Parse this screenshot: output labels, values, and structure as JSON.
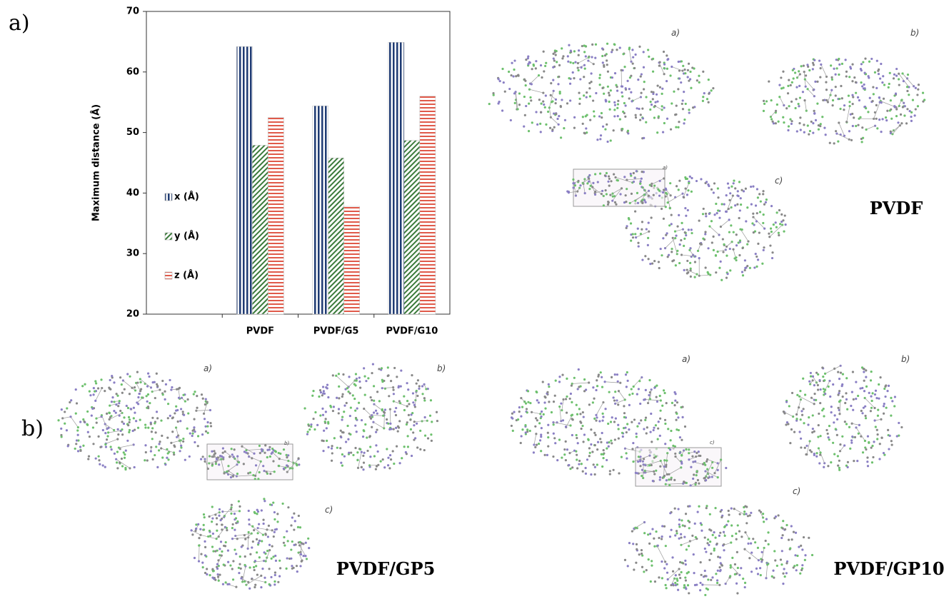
{
  "chart_data": {
    "type": "bar",
    "y_label": "Maximum distance (Å)",
    "categories": [
      null,
      "PVDF",
      "PVDF/G5",
      "PVDF/G10"
    ],
    "series": [
      {
        "name": "x (Å)",
        "color": "#1f3b73",
        "values": [
          null,
          64.2,
          54.4,
          64.9
        ]
      },
      {
        "name": "y (Å)",
        "color": "#3a7a3a",
        "values": [
          null,
          47.9,
          45.8,
          48.7
        ]
      },
      {
        "name": "z (Å)",
        "color": "#e05a4a",
        "values": [
          null,
          52.5,
          37.8,
          56.0
        ]
      }
    ],
    "ylim": [
      20,
      70
    ],
    "yticks": [
      20,
      30,
      40,
      50,
      60,
      70
    ]
  },
  "figure_labels": [
    "a)",
    "b)"
  ],
  "panels": [
    {
      "name": "PVDF",
      "subs": [
        "a)",
        "b)",
        "c)"
      ],
      "inset": "a)"
    },
    {
      "name": "PVDF/GP5",
      "subs": [
        "a)",
        "b)",
        "c)"
      ],
      "inset": "b)"
    },
    {
      "name": "PVDF/GP10",
      "subs": [
        "a)",
        "b)",
        "c)"
      ],
      "inset": "c)"
    }
  ]
}
